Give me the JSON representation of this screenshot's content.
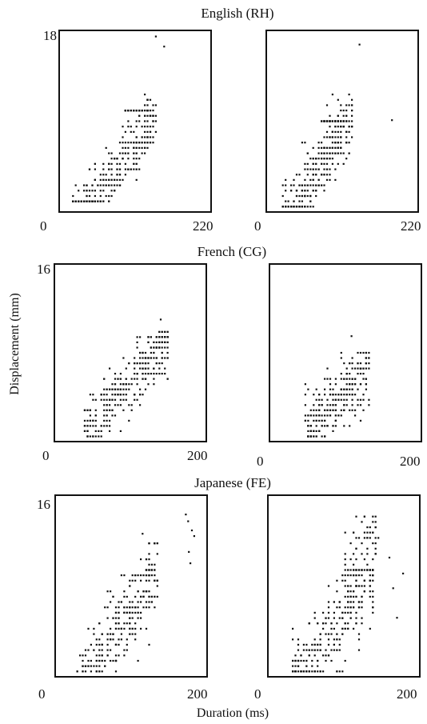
{
  "figure": {
    "xlabel": "Duration (ms)",
    "ylabel": "Displacement (mm)"
  },
  "chart_data": [
    {
      "type": "scatter",
      "row": 0,
      "col": 0,
      "title": "English (RH)",
      "xlim": [
        0,
        220
      ],
      "ylim": [
        0,
        18
      ],
      "x_tick_labels": [
        "0",
        "220"
      ],
      "y_tick_labels": [
        "0",
        "18"
      ],
      "marker_color": "#111111",
      "clusters": [
        {
          "x_range": [
            18,
            140
          ],
          "y_range": [
            1.0,
            11.0
          ],
          "slope": 0.089,
          "intercept": -3.2,
          "spread": 1.5,
          "count": 320
        },
        {
          "x_range": [
            95,
            130
          ],
          "y_range": [
            10.0,
            15.8
          ],
          "slope": 0.089,
          "intercept": -2.7,
          "spread": 2.0,
          "count": 60
        }
      ],
      "outliers": [
        [
          140,
          17.4
        ],
        [
          152,
          16.4
        ]
      ]
    },
    {
      "type": "scatter",
      "row": 0,
      "col": 1,
      "title": "",
      "xlim": [
        0,
        220
      ],
      "ylim": [
        0,
        18
      ],
      "x_tick_labels": [
        "0",
        "220"
      ],
      "y_tick_labels": [],
      "marker_color": "#111111",
      "clusters": [
        {
          "x_range": [
            22,
            125
          ],
          "y_range": [
            0.5,
            11.5
          ],
          "slope": 0.097,
          "intercept": -3.2,
          "spread": 1.6,
          "count": 320
        },
        {
          "x_range": [
            80,
            115
          ],
          "y_range": [
            9.0,
            14.5
          ],
          "slope": 0.097,
          "intercept": -2.5,
          "spread": 2.0,
          "count": 60
        }
      ],
      "outliers": [
        [
          135,
          16.6
        ],
        [
          182,
          9.1
        ]
      ]
    },
    {
      "type": "scatter",
      "row": 1,
      "col": 0,
      "title": "French (CG)",
      "xlim": [
        0,
        200
      ],
      "ylim": [
        0,
        16
      ],
      "x_tick_labels": [
        "0",
        "200"
      ],
      "y_tick_labels": [
        "0",
        "16"
      ],
      "marker_color": "#111111",
      "clusters": [
        {
          "x_range": [
            40,
            150
          ],
          "y_range": [
            0.3,
            9.5
          ],
          "slope": 0.071,
          "intercept": -1.8,
          "spread": 1.3,
          "count": 300
        },
        {
          "x_range": [
            110,
            150
          ],
          "y_range": [
            6.5,
            10.0
          ],
          "slope": 0.071,
          "intercept": -0.5,
          "spread": 1.2,
          "count": 40
        }
      ],
      "outliers": [
        [
          140,
          11.0
        ]
      ]
    },
    {
      "type": "scatter",
      "row": 1,
      "col": 1,
      "title": "",
      "xlim": [
        0,
        200
      ],
      "ylim": [
        0,
        16
      ],
      "x_tick_labels": [
        "0",
        "200"
      ],
      "y_tick_labels": [],
      "marker_color": "#111111",
      "clusters": [
        {
          "x_range": [
            48,
            132
          ],
          "y_range": [
            0.3,
            7.8
          ],
          "slope": 0.06,
          "intercept": -1.6,
          "spread": 1.4,
          "count": 280
        }
      ],
      "outliers": [
        [
          108,
          9.5
        ]
      ]
    },
    {
      "type": "scatter",
      "row": 2,
      "col": 0,
      "title": "Japanese (FE)",
      "xlim": [
        0,
        200
      ],
      "ylim": [
        0,
        16
      ],
      "x_tick_labels": [
        "0",
        "200"
      ],
      "y_tick_labels": [
        "0",
        "16"
      ],
      "marker_color": "#111111",
      "clusters": [
        {
          "x_range": [
            30,
            135
          ],
          "y_range": [
            0.2,
            11.8
          ],
          "slope": 0.11,
          "intercept": -4.8,
          "spread": 1.8,
          "count": 330
        }
      ],
      "outliers": [
        [
          172,
          14.3
        ],
        [
          175,
          13.7
        ],
        [
          180,
          12.9
        ],
        [
          183,
          12.4
        ],
        [
          176,
          11.0
        ],
        [
          178,
          10.0
        ],
        [
          115,
          12.6
        ]
      ]
    },
    {
      "type": "scatter",
      "row": 2,
      "col": 1,
      "title": "",
      "xlim": [
        0,
        200
      ],
      "ylim": [
        0,
        16
      ],
      "x_tick_labels": [
        "0",
        "200"
      ],
      "y_tick_labels": [],
      "marker_color": "#111111",
      "clusters": [
        {
          "x_range": [
            30,
            140
          ],
          "y_range": [
            0.3,
            9.5
          ],
          "slope": 0.085,
          "intercept": -3.0,
          "spread": 2.0,
          "count": 300
        },
        {
          "x_range": [
            100,
            145
          ],
          "y_range": [
            7.0,
            14.2
          ],
          "slope": 0.085,
          "intercept": 0.5,
          "spread": 2.0,
          "count": 80
        }
      ],
      "outliers": [
        [
          165,
          7.8
        ],
        [
          170,
          5.2
        ],
        [
          178,
          9.1
        ],
        [
          160,
          10.5
        ]
      ]
    }
  ]
}
